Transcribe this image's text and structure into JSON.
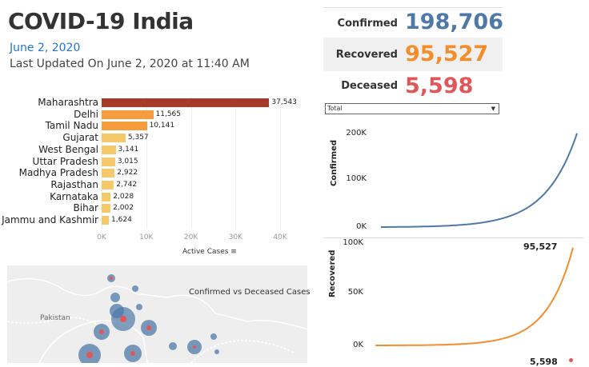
{
  "header": {
    "title": "COVID-19 India",
    "date": "June 2, 2020",
    "last_updated": "Last Updated On June 2, 2020 at 11:40 AM"
  },
  "kpis": {
    "confirmed_label": "Confirmed",
    "confirmed_value": "198,706",
    "recovered_label": "Recovered",
    "recovered_value": "95,527",
    "deceased_label": "Deceased",
    "deceased_value": "5,598"
  },
  "colors": {
    "confirmed": "#4e79a7",
    "recovered": "#f28e2b",
    "deceased": "#e15759",
    "bar_top": "#a83a2a",
    "bar_mid": "#f59d3d",
    "bar_low": "#f5c96a"
  },
  "filter": {
    "selected": "Total"
  },
  "bar_chart": {
    "type": "bar",
    "categories": [
      "Maharashtra",
      "Delhi",
      "Tamil Nadu",
      "Gujarat",
      "West Bengal",
      "Uttar Pradesh",
      "Madhya Pradesh",
      "Rajasthan",
      "Karnataka",
      "Bihar",
      "Jammu and Kashmir"
    ],
    "values": [
      37543,
      11565,
      10141,
      5357,
      3141,
      3015,
      2922,
      2742,
      2028,
      2002,
      1624
    ],
    "value_labels": [
      "37,543",
      "11,565",
      "10,141",
      "5,357",
      "3,141",
      "3,015",
      "2,922",
      "2,742",
      "2,028",
      "2,002",
      "1,624"
    ],
    "xticks": [
      "0K",
      "10K",
      "20K",
      "30K",
      "40K"
    ],
    "xlabel": "Active Cases",
    "xlim": [
      0,
      45000
    ]
  },
  "confirmed_chart": {
    "type": "line",
    "ylabel": "Confirmed",
    "yticks": [
      "200K",
      "100K",
      "0K"
    ],
    "ylim": [
      0,
      200000
    ],
    "end_value": 198706
  },
  "recovered_chart": {
    "type": "line",
    "ylabel": "Recovered",
    "yticks": [
      "100K",
      "50K",
      "0K"
    ],
    "ylim": [
      0,
      100000
    ],
    "end_label": "95,527",
    "end_value": 95527
  },
  "deceased_annotation": "5,598",
  "map": {
    "title": "Confirmed vs Deceased Cases",
    "country_label": "Pakistan"
  }
}
